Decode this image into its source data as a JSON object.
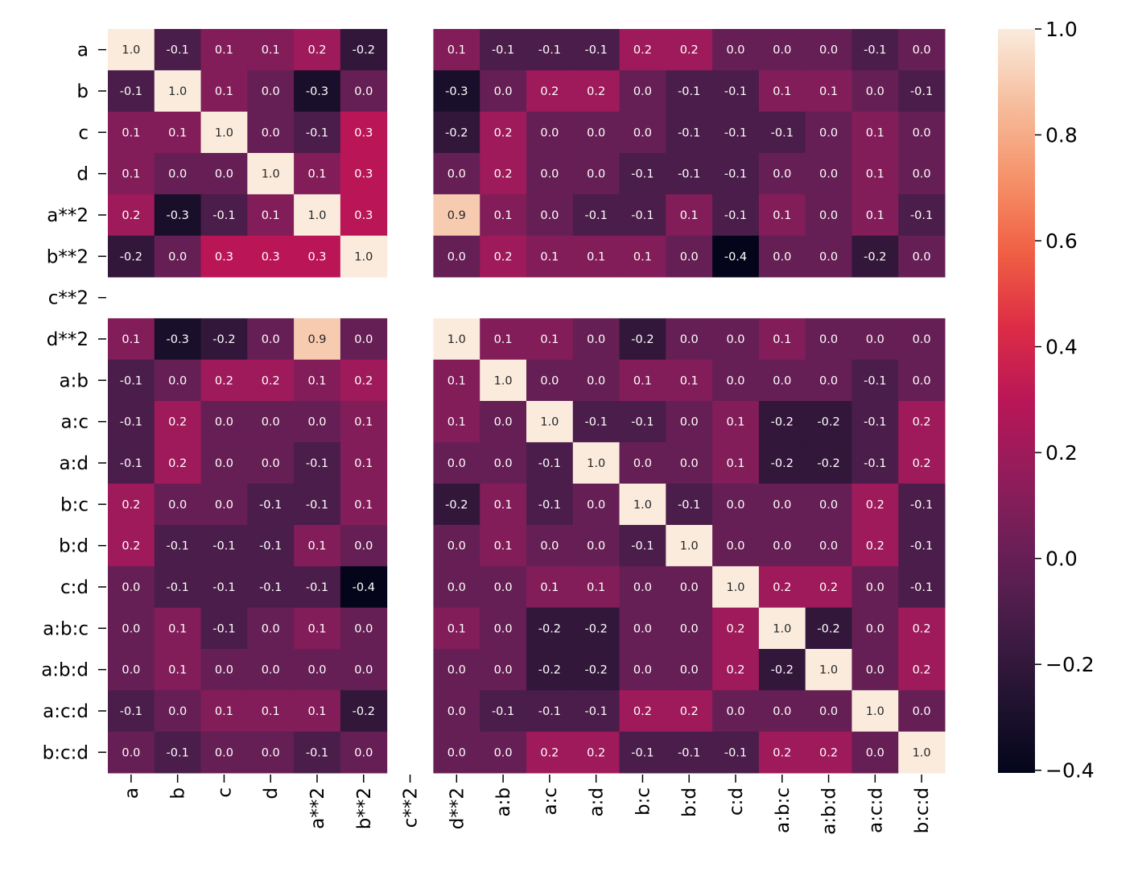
{
  "chart_data": {
    "type": "heatmap",
    "title": "",
    "xlabel": "",
    "ylabel": "",
    "labels": [
      "a",
      "b",
      "c",
      "d",
      "a**2",
      "b**2",
      "c**2",
      "d**2",
      "a:b",
      "a:c",
      "a:d",
      "b:c",
      "b:d",
      "c:d",
      "a:b:c",
      "a:b:d",
      "a:c:d",
      "b:c:d"
    ],
    "values": [
      [
        1.0,
        -0.1,
        0.1,
        0.1,
        0.2,
        -0.2,
        null,
        0.1,
        -0.1,
        -0.1,
        -0.1,
        0.2,
        0.2,
        0.0,
        0.0,
        0.0,
        -0.1,
        -0.0
      ],
      [
        -0.1,
        1.0,
        0.1,
        -0.0,
        -0.3,
        0.0,
        null,
        -0.3,
        -0.0,
        0.2,
        0.2,
        0.0,
        -0.1,
        -0.1,
        0.1,
        0.1,
        -0.0,
        -0.1
      ],
      [
        0.1,
        0.1,
        1.0,
        -0.0,
        -0.1,
        0.3,
        null,
        -0.2,
        0.2,
        0.0,
        0.0,
        -0.0,
        -0.1,
        -0.1,
        -0.1,
        -0.0,
        0.1,
        -0.0
      ],
      [
        0.1,
        -0.0,
        -0.0,
        1.0,
        0.1,
        0.3,
        null,
        0.0,
        0.2,
        0.0,
        0.0,
        -0.1,
        -0.1,
        -0.1,
        -0.0,
        -0.0,
        0.1,
        -0.0
      ],
      [
        0.2,
        -0.3,
        -0.1,
        0.1,
        1.0,
        0.3,
        null,
        0.9,
        0.1,
        0.0,
        -0.1,
        -0.1,
        0.1,
        -0.1,
        0.1,
        0.0,
        0.1,
        -0.1
      ],
      [
        -0.2,
        0.0,
        0.3,
        0.3,
        0.3,
        1.0,
        null,
        -0.0,
        0.2,
        0.1,
        0.1,
        0.1,
        0.0,
        -0.4,
        -0.0,
        -0.0,
        -0.2,
        0.0
      ],
      [
        null,
        null,
        null,
        null,
        null,
        null,
        null,
        null,
        null,
        null,
        null,
        null,
        null,
        null,
        null,
        null,
        null,
        null
      ],
      [
        0.1,
        -0.3,
        -0.2,
        0.0,
        0.9,
        -0.0,
        null,
        1.0,
        0.1,
        0.1,
        0.0,
        -0.2,
        0.0,
        -0.0,
        0.1,
        0.0,
        0.0,
        -0.0
      ],
      [
        -0.1,
        -0.0,
        0.2,
        0.2,
        0.1,
        0.2,
        null,
        0.1,
        1.0,
        0.0,
        0.0,
        0.1,
        0.1,
        -0.0,
        -0.0,
        -0.0,
        -0.1,
        -0.0
      ],
      [
        -0.1,
        0.2,
        0.0,
        0.0,
        0.0,
        0.1,
        null,
        0.1,
        0.0,
        1.0,
        -0.1,
        -0.1,
        -0.0,
        0.1,
        -0.2,
        -0.2,
        -0.1,
        0.2
      ],
      [
        -0.1,
        0.2,
        0.0,
        0.0,
        -0.1,
        0.1,
        null,
        0.0,
        0.0,
        -0.1,
        1.0,
        -0.0,
        -0.0,
        0.1,
        -0.2,
        -0.2,
        -0.1,
        0.2
      ],
      [
        0.2,
        0.0,
        -0.0,
        -0.1,
        -0.1,
        0.1,
        null,
        -0.2,
        0.1,
        -0.1,
        -0.0,
        1.0,
        -0.1,
        -0.0,
        -0.0,
        -0.0,
        0.2,
        -0.1
      ],
      [
        0.2,
        -0.1,
        -0.1,
        -0.1,
        0.1,
        0.0,
        null,
        0.0,
        0.1,
        -0.0,
        -0.0,
        -0.1,
        1.0,
        -0.0,
        -0.0,
        -0.0,
        0.2,
        -0.1
      ],
      [
        0.0,
        -0.1,
        -0.1,
        -0.1,
        -0.1,
        -0.4,
        null,
        -0.0,
        -0.0,
        0.1,
        0.1,
        -0.0,
        -0.0,
        1.0,
        0.2,
        0.2,
        0.0,
        -0.1
      ],
      [
        0.0,
        0.1,
        -0.1,
        -0.0,
        0.1,
        -0.0,
        null,
        0.1,
        -0.0,
        -0.2,
        -0.2,
        -0.0,
        -0.0,
        0.2,
        1.0,
        -0.2,
        0.0,
        0.2
      ],
      [
        0.0,
        0.1,
        -0.0,
        -0.0,
        0.0,
        -0.0,
        null,
        0.0,
        -0.0,
        -0.2,
        -0.2,
        -0.0,
        -0.0,
        0.2,
        -0.2,
        1.0,
        0.0,
        0.2
      ],
      [
        -0.1,
        -0.0,
        0.1,
        0.1,
        0.1,
        -0.2,
        null,
        0.0,
        -0.1,
        -0.1,
        -0.1,
        0.2,
        0.2,
        0.0,
        0.0,
        0.0,
        1.0,
        -0.0
      ],
      [
        -0.0,
        -0.1,
        -0.0,
        -0.0,
        -0.1,
        0.0,
        null,
        -0.0,
        -0.0,
        0.2,
        0.2,
        -0.1,
        -0.1,
        -0.1,
        0.2,
        0.2,
        -0.0,
        1.0
      ]
    ],
    "colormap": "rocket",
    "colormap_stops": [
      "#03051A",
      "#221331",
      "#451C47",
      "#6A1F56",
      "#921C5B",
      "#B91657",
      "#DD2C45",
      "#F06043",
      "#F5926A",
      "#F6BE9E",
      "#FAEBDD"
    ],
    "vmin": -0.4,
    "vmax": 1.0,
    "colorbar_ticks": [
      "1.0",
      "0.8",
      "0.6",
      "0.4",
      "0.2",
      "0.0",
      "−0.2",
      "−0.4"
    ],
    "colorbar_tick_values": [
      1.0,
      0.8,
      0.6,
      0.4,
      0.2,
      0.0,
      -0.2,
      -0.4
    ],
    "annotation_format": "0.1f",
    "grid": false
  }
}
